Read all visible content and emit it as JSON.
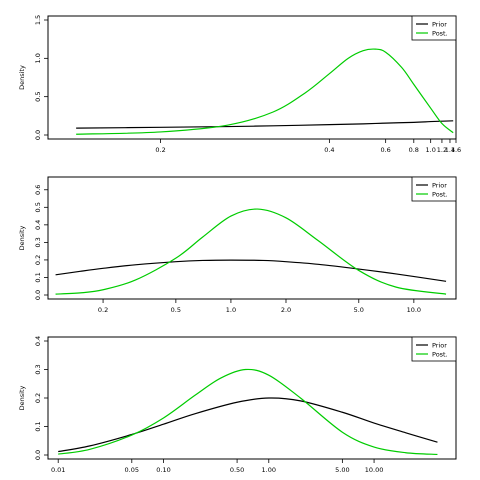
{
  "colors": {
    "prior": "#000000",
    "posterior": "#00cc00",
    "frame": "#000000"
  },
  "chart_data": [
    {
      "type": "line",
      "title": "",
      "xlabel": "",
      "ylabel": "Density",
      "xscale": "reciprocal",
      "xlim": [
        0.15,
        1.6
      ],
      "ylim": [
        0,
        1.5
      ],
      "xticks": [
        0.2,
        0.4,
        0.6,
        0.8,
        1.0,
        1.2,
        1.4,
        1.6
      ],
      "xtick_labels": [
        "0.2",
        "0.4",
        "0.6",
        "0.8",
        "1.0",
        "1.2",
        "1.4",
        "1.6"
      ],
      "yticks": [
        0,
        0.5,
        1.0,
        1.5
      ],
      "ytick_labels": [
        "0.0",
        "0.5",
        "1.0",
        "1.5"
      ],
      "legend": {
        "position": "top-right",
        "entries": [
          "Prior",
          "Post."
        ]
      },
      "series": [
        {
          "name": "Prior",
          "x": [
            0.16,
            0.2,
            0.25,
            0.3,
            0.4,
            0.5,
            0.6,
            0.8,
            1.0,
            1.2,
            1.5
          ],
          "y": [
            0.09,
            0.1,
            0.11,
            0.12,
            0.135,
            0.145,
            0.155,
            0.165,
            0.175,
            0.18,
            0.185
          ]
        },
        {
          "name": "Post.",
          "x": [
            0.16,
            0.2,
            0.25,
            0.3,
            0.35,
            0.4,
            0.45,
            0.5,
            0.55,
            0.6,
            0.7,
            0.8,
            1.0,
            1.2,
            1.5
          ],
          "y": [
            0.01,
            0.04,
            0.13,
            0.3,
            0.55,
            0.8,
            1.0,
            1.1,
            1.12,
            1.08,
            0.88,
            0.66,
            0.35,
            0.15,
            0.03
          ]
        }
      ]
    },
    {
      "type": "line",
      "title": "",
      "xlabel": "",
      "ylabel": "Density",
      "xscale": "log",
      "xlim": [
        0.1,
        17
      ],
      "ylim": [
        0,
        0.65
      ],
      "xticks": [
        0.2,
        0.5,
        1.0,
        2.0,
        5.0,
        10.0
      ],
      "xtick_labels": [
        "0.2",
        "0.5",
        "1.0",
        "2.0",
        "5.0",
        "10.0"
      ],
      "yticks": [
        0,
        0.1,
        0.2,
        0.3,
        0.4,
        0.5,
        0.6
      ],
      "ytick_labels": [
        "0.0",
        "0.1",
        "0.2",
        "0.3",
        "0.4",
        "0.5",
        "0.6"
      ],
      "legend": {
        "position": "top-right",
        "entries": [
          "Prior",
          "Post."
        ]
      },
      "series": [
        {
          "name": "Prior",
          "x": [
            0.11,
            0.15,
            0.2,
            0.3,
            0.5,
            0.7,
            1.0,
            1.5,
            2.0,
            3.0,
            5.0,
            8.0,
            15.0
          ],
          "y": [
            0.115,
            0.135,
            0.152,
            0.172,
            0.19,
            0.197,
            0.199,
            0.197,
            0.19,
            0.175,
            0.148,
            0.12,
            0.078
          ]
        },
        {
          "name": "Post.",
          "x": [
            0.11,
            0.15,
            0.2,
            0.3,
            0.5,
            0.7,
            1.0,
            1.4,
            2.0,
            3.0,
            5.0,
            8.0,
            15.0
          ],
          "y": [
            0.005,
            0.012,
            0.03,
            0.085,
            0.21,
            0.33,
            0.45,
            0.49,
            0.44,
            0.31,
            0.14,
            0.045,
            0.005
          ]
        }
      ]
    },
    {
      "type": "line",
      "title": "",
      "xlabel": "",
      "ylabel": "Density",
      "xscale": "log",
      "xlim": [
        0.008,
        60
      ],
      "ylim": [
        0,
        0.4
      ],
      "xticks": [
        0.01,
        0.05,
        0.1,
        0.5,
        1.0,
        5.0,
        10.0
      ],
      "xtick_labels": [
        "0.01",
        "0.05",
        "0.10",
        "0.50",
        "1.00",
        "5.00",
        "10.00"
      ],
      "yticks": [
        0,
        0.1,
        0.2,
        0.3,
        0.4
      ],
      "ytick_labels": [
        "0.0",
        "0.1",
        "0.2",
        "0.3",
        "0.4"
      ],
      "legend": {
        "position": "top-right",
        "entries": [
          "Prior",
          "Post."
        ]
      },
      "series": [
        {
          "name": "Prior",
          "x": [
            0.01,
            0.02,
            0.05,
            0.1,
            0.2,
            0.5,
            1.0,
            2.0,
            5.0,
            10.0,
            20.0,
            40.0
          ],
          "y": [
            0.012,
            0.032,
            0.072,
            0.108,
            0.145,
            0.185,
            0.2,
            0.19,
            0.15,
            0.112,
            0.078,
            0.045
          ]
        },
        {
          "name": "Post.",
          "x": [
            0.01,
            0.02,
            0.05,
            0.1,
            0.2,
            0.35,
            0.6,
            1.0,
            2.0,
            5.0,
            10.0,
            20.0,
            40.0
          ],
          "y": [
            0.003,
            0.02,
            0.07,
            0.13,
            0.21,
            0.27,
            0.3,
            0.28,
            0.2,
            0.08,
            0.028,
            0.008,
            0.002
          ]
        }
      ]
    }
  ]
}
